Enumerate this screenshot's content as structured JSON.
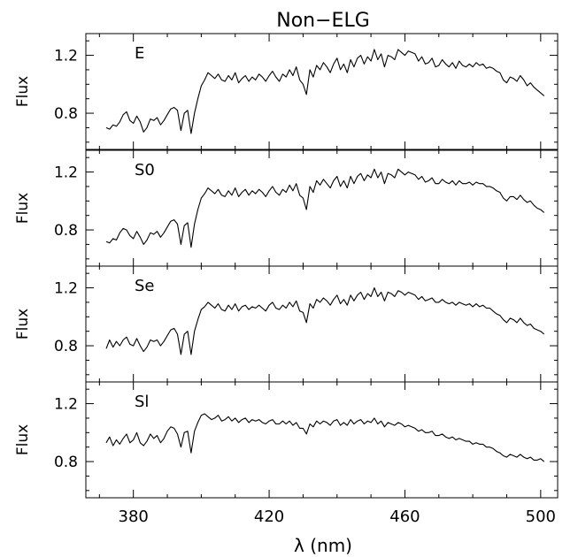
{
  "chart_data": {
    "type": "line",
    "title": "Non−ELG",
    "xlabel": "λ (nm)",
    "ylabel": "Flux",
    "xlim": [
      366,
      505
    ],
    "x_ticks": [
      "380",
      "420",
      "460",
      "500"
    ],
    "panels": [
      {
        "label": "E",
        "ylim": [
          0.55,
          1.35
        ],
        "y_ticks": [
          "0.8",
          "1.2"
        ],
        "x": [
          372,
          373,
          374,
          375,
          376,
          377,
          378,
          379,
          380,
          381,
          382,
          383,
          384,
          385,
          386,
          387,
          388,
          389,
          390,
          391,
          392,
          393,
          394,
          395,
          396,
          397,
          398,
          399,
          400,
          401,
          402,
          403,
          404,
          405,
          406,
          407,
          408,
          409,
          410,
          411,
          412,
          413,
          414,
          415,
          416,
          417,
          418,
          419,
          420,
          421,
          422,
          423,
          424,
          425,
          426,
          427,
          428,
          429,
          430,
          431,
          432,
          433,
          434,
          435,
          436,
          437,
          438,
          439,
          440,
          441,
          442,
          443,
          444,
          445,
          446,
          447,
          448,
          449,
          450,
          451,
          452,
          453,
          454,
          455,
          456,
          457,
          458,
          459,
          460,
          461,
          462,
          463,
          464,
          465,
          466,
          467,
          468,
          469,
          470,
          471,
          472,
          473,
          474,
          475,
          476,
          477,
          478,
          479,
          480,
          481,
          482,
          483,
          484,
          485,
          486,
          487,
          488,
          489,
          490,
          491,
          492,
          493,
          494,
          495,
          496,
          497,
          498,
          499,
          500,
          501
        ],
        "values": [
          0.7,
          0.69,
          0.72,
          0.71,
          0.74,
          0.79,
          0.81,
          0.75,
          0.73,
          0.78,
          0.74,
          0.67,
          0.7,
          0.76,
          0.75,
          0.77,
          0.72,
          0.75,
          0.79,
          0.83,
          0.84,
          0.82,
          0.68,
          0.8,
          0.82,
          0.66,
          0.8,
          0.9,
          0.99,
          1.03,
          1.08,
          1.06,
          1.04,
          1.07,
          1.03,
          1.02,
          1.06,
          1.03,
          1.08,
          1.01,
          1.04,
          1.06,
          1.02,
          1.05,
          1.03,
          1.07,
          1.05,
          1.02,
          1.06,
          1.09,
          1.05,
          1.02,
          1.07,
          1.05,
          1.1,
          1.06,
          1.12,
          1.03,
          1.0,
          0.93,
          1.1,
          1.05,
          1.13,
          1.1,
          1.15,
          1.12,
          1.08,
          1.14,
          1.18,
          1.1,
          1.14,
          1.08,
          1.17,
          1.12,
          1.18,
          1.2,
          1.14,
          1.19,
          1.16,
          1.24,
          1.17,
          1.21,
          1.12,
          1.2,
          1.19,
          1.17,
          1.24,
          1.22,
          1.2,
          1.23,
          1.22,
          1.21,
          1.16,
          1.19,
          1.14,
          1.15,
          1.18,
          1.12,
          1.13,
          1.17,
          1.14,
          1.12,
          1.15,
          1.11,
          1.16,
          1.13,
          1.12,
          1.14,
          1.12,
          1.15,
          1.13,
          1.14,
          1.11,
          1.12,
          1.11,
          1.09,
          1.08,
          1.03,
          1.01,
          1.05,
          1.04,
          1.02,
          1.06,
          1.03,
          0.99,
          1.01,
          0.98,
          0.96,
          0.94,
          0.92
        ]
      },
      {
        "label": "S0",
        "ylim": [
          0.55,
          1.35
        ],
        "y_ticks": [
          "0.8",
          "1.2"
        ],
        "x": [
          372,
          373,
          374,
          375,
          376,
          377,
          378,
          379,
          380,
          381,
          382,
          383,
          384,
          385,
          386,
          387,
          388,
          389,
          390,
          391,
          392,
          393,
          394,
          395,
          396,
          397,
          398,
          399,
          400,
          401,
          402,
          403,
          404,
          405,
          406,
          407,
          408,
          409,
          410,
          411,
          412,
          413,
          414,
          415,
          416,
          417,
          418,
          419,
          420,
          421,
          422,
          423,
          424,
          425,
          426,
          427,
          428,
          429,
          430,
          431,
          432,
          433,
          434,
          435,
          436,
          437,
          438,
          439,
          440,
          441,
          442,
          443,
          444,
          445,
          446,
          447,
          448,
          449,
          450,
          451,
          452,
          453,
          454,
          455,
          456,
          457,
          458,
          459,
          460,
          461,
          462,
          463,
          464,
          465,
          466,
          467,
          468,
          469,
          470,
          471,
          472,
          473,
          474,
          475,
          476,
          477,
          478,
          479,
          480,
          481,
          482,
          483,
          484,
          485,
          486,
          487,
          488,
          489,
          490,
          491,
          492,
          493,
          494,
          495,
          496,
          497,
          498,
          499,
          500,
          501
        ],
        "values": [
          0.72,
          0.71,
          0.74,
          0.73,
          0.78,
          0.81,
          0.8,
          0.76,
          0.74,
          0.79,
          0.75,
          0.7,
          0.73,
          0.78,
          0.77,
          0.79,
          0.75,
          0.78,
          0.82,
          0.86,
          0.87,
          0.84,
          0.7,
          0.83,
          0.85,
          0.68,
          0.84,
          0.94,
          1.02,
          1.05,
          1.09,
          1.07,
          1.05,
          1.08,
          1.04,
          1.03,
          1.07,
          1.04,
          1.09,
          1.03,
          1.06,
          1.08,
          1.04,
          1.07,
          1.05,
          1.08,
          1.06,
          1.03,
          1.07,
          1.1,
          1.06,
          1.04,
          1.08,
          1.06,
          1.11,
          1.07,
          1.12,
          1.04,
          1.02,
          0.94,
          1.1,
          1.06,
          1.14,
          1.11,
          1.15,
          1.12,
          1.09,
          1.14,
          1.17,
          1.1,
          1.14,
          1.09,
          1.17,
          1.12,
          1.17,
          1.19,
          1.14,
          1.18,
          1.16,
          1.22,
          1.16,
          1.2,
          1.12,
          1.19,
          1.18,
          1.16,
          1.22,
          1.2,
          1.18,
          1.2,
          1.19,
          1.18,
          1.15,
          1.17,
          1.13,
          1.14,
          1.16,
          1.12,
          1.12,
          1.15,
          1.13,
          1.12,
          1.14,
          1.11,
          1.14,
          1.12,
          1.12,
          1.13,
          1.11,
          1.13,
          1.12,
          1.12,
          1.1,
          1.1,
          1.09,
          1.07,
          1.06,
          1.02,
          1.0,
          1.03,
          1.03,
          1.01,
          1.04,
          1.01,
          0.99,
          1.0,
          0.97,
          0.95,
          0.94,
          0.92
        ]
      },
      {
        "label": "Se",
        "ylim": [
          0.55,
          1.35
        ],
        "y_ticks": [
          "0.8",
          "1.2"
        ],
        "x": [
          372,
          373,
          374,
          375,
          376,
          377,
          378,
          379,
          380,
          381,
          382,
          383,
          384,
          385,
          386,
          387,
          388,
          389,
          390,
          391,
          392,
          393,
          394,
          395,
          396,
          397,
          398,
          399,
          400,
          401,
          402,
          403,
          404,
          405,
          406,
          407,
          408,
          409,
          410,
          411,
          412,
          413,
          414,
          415,
          416,
          417,
          418,
          419,
          420,
          421,
          422,
          423,
          424,
          425,
          426,
          427,
          428,
          429,
          430,
          431,
          432,
          433,
          434,
          435,
          436,
          437,
          438,
          439,
          440,
          441,
          442,
          443,
          444,
          445,
          446,
          447,
          448,
          449,
          450,
          451,
          452,
          453,
          454,
          455,
          456,
          457,
          458,
          459,
          460,
          461,
          462,
          463,
          464,
          465,
          466,
          467,
          468,
          469,
          470,
          471,
          472,
          473,
          474,
          475,
          476,
          477,
          478,
          479,
          480,
          481,
          482,
          483,
          484,
          485,
          486,
          487,
          488,
          489,
          490,
          491,
          492,
          493,
          494,
          495,
          496,
          497,
          498,
          499,
          500,
          501
        ],
        "values": [
          0.78,
          0.84,
          0.79,
          0.83,
          0.8,
          0.84,
          0.86,
          0.81,
          0.8,
          0.85,
          0.8,
          0.76,
          0.79,
          0.84,
          0.83,
          0.84,
          0.8,
          0.83,
          0.87,
          0.91,
          0.92,
          0.88,
          0.74,
          0.88,
          0.9,
          0.74,
          0.9,
          0.98,
          1.05,
          1.07,
          1.1,
          1.08,
          1.06,
          1.09,
          1.05,
          1.04,
          1.08,
          1.05,
          1.09,
          1.04,
          1.07,
          1.08,
          1.05,
          1.07,
          1.06,
          1.08,
          1.06,
          1.04,
          1.08,
          1.1,
          1.06,
          1.05,
          1.08,
          1.06,
          1.1,
          1.07,
          1.11,
          1.04,
          1.03,
          0.96,
          1.09,
          1.06,
          1.12,
          1.1,
          1.13,
          1.11,
          1.08,
          1.12,
          1.15,
          1.09,
          1.12,
          1.08,
          1.15,
          1.11,
          1.15,
          1.17,
          1.12,
          1.16,
          1.14,
          1.2,
          1.14,
          1.17,
          1.11,
          1.17,
          1.16,
          1.14,
          1.18,
          1.17,
          1.15,
          1.17,
          1.16,
          1.15,
          1.12,
          1.14,
          1.11,
          1.12,
          1.13,
          1.1,
          1.1,
          1.12,
          1.1,
          1.09,
          1.1,
          1.08,
          1.1,
          1.09,
          1.08,
          1.09,
          1.07,
          1.09,
          1.07,
          1.08,
          1.06,
          1.06,
          1.04,
          1.02,
          1.01,
          0.98,
          0.96,
          0.99,
          0.98,
          0.96,
          0.99,
          0.96,
          0.94,
          0.95,
          0.92,
          0.91,
          0.9,
          0.88
        ]
      },
      {
        "label": "Sl",
        "ylim": [
          0.55,
          1.35
        ],
        "y_ticks": [
          "0.8",
          "1.2"
        ],
        "x": [
          372,
          373,
          374,
          375,
          376,
          377,
          378,
          379,
          380,
          381,
          382,
          383,
          384,
          385,
          386,
          387,
          388,
          389,
          390,
          391,
          392,
          393,
          394,
          395,
          396,
          397,
          398,
          399,
          400,
          401,
          402,
          403,
          404,
          405,
          406,
          407,
          408,
          409,
          410,
          411,
          412,
          413,
          414,
          415,
          416,
          417,
          418,
          419,
          420,
          421,
          422,
          423,
          424,
          425,
          426,
          427,
          428,
          429,
          430,
          431,
          432,
          433,
          434,
          435,
          436,
          437,
          438,
          439,
          440,
          441,
          442,
          443,
          444,
          445,
          446,
          447,
          448,
          449,
          450,
          451,
          452,
          453,
          454,
          455,
          456,
          457,
          458,
          459,
          460,
          461,
          462,
          463,
          464,
          465,
          466,
          467,
          468,
          469,
          470,
          471,
          472,
          473,
          474,
          475,
          476,
          477,
          478,
          479,
          480,
          481,
          482,
          483,
          484,
          485,
          486,
          487,
          488,
          489,
          490,
          491,
          492,
          493,
          494,
          495,
          496,
          497,
          498,
          499,
          500,
          501
        ],
        "values": [
          0.93,
          0.97,
          0.91,
          0.95,
          0.92,
          0.96,
          0.99,
          0.93,
          0.95,
          1.0,
          0.93,
          0.91,
          0.94,
          0.99,
          0.96,
          0.98,
          0.93,
          0.96,
          1.01,
          1.04,
          1.03,
          0.99,
          0.9,
          1.0,
          1.01,
          0.86,
          1.01,
          1.07,
          1.12,
          1.13,
          1.11,
          1.09,
          1.1,
          1.12,
          1.08,
          1.09,
          1.11,
          1.08,
          1.1,
          1.07,
          1.09,
          1.1,
          1.07,
          1.09,
          1.08,
          1.09,
          1.07,
          1.06,
          1.08,
          1.09,
          1.06,
          1.06,
          1.08,
          1.06,
          1.08,
          1.05,
          1.07,
          1.03,
          1.03,
          0.99,
          1.06,
          1.04,
          1.08,
          1.06,
          1.08,
          1.07,
          1.05,
          1.08,
          1.09,
          1.05,
          1.07,
          1.05,
          1.09,
          1.06,
          1.08,
          1.09,
          1.06,
          1.08,
          1.07,
          1.1,
          1.06,
          1.08,
          1.04,
          1.07,
          1.06,
          1.05,
          1.07,
          1.06,
          1.04,
          1.05,
          1.04,
          1.03,
          1.01,
          1.02,
          1.0,
          1.0,
          1.01,
          0.98,
          0.98,
          0.99,
          0.97,
          0.96,
          0.97,
          0.95,
          0.96,
          0.95,
          0.94,
          0.94,
          0.92,
          0.93,
          0.92,
          0.92,
          0.9,
          0.9,
          0.89,
          0.87,
          0.86,
          0.84,
          0.83,
          0.85,
          0.84,
          0.83,
          0.85,
          0.83,
          0.82,
          0.83,
          0.81,
          0.81,
          0.82,
          0.8
        ]
      }
    ],
    "grid": false,
    "legend": "none"
  }
}
